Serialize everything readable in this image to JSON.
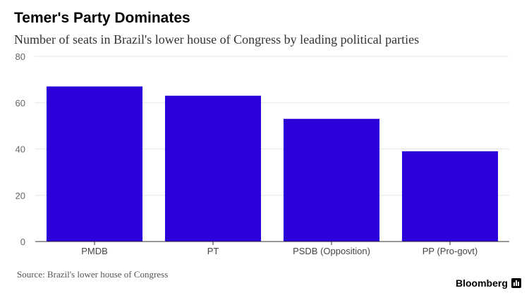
{
  "brand": {
    "name": "Bloomberg"
  },
  "source": "Source: Brazil's lower house of Congress",
  "chart_data": {
    "type": "bar",
    "title": "Temer's Party Dominates",
    "subtitle": "Number of seats in Brazil's lower house of Congress by leading political parties",
    "categories": [
      "PMDB",
      "PT",
      "PSDB (Opposition)",
      "PP (Pro-govt)"
    ],
    "values": [
      67,
      63,
      53,
      39
    ],
    "ylim": [
      0,
      80
    ],
    "yticks": [
      0,
      20,
      40,
      60,
      80
    ],
    "xlabel": "",
    "ylabel": "",
    "grid": true,
    "bar_color": "#2b00d9"
  }
}
